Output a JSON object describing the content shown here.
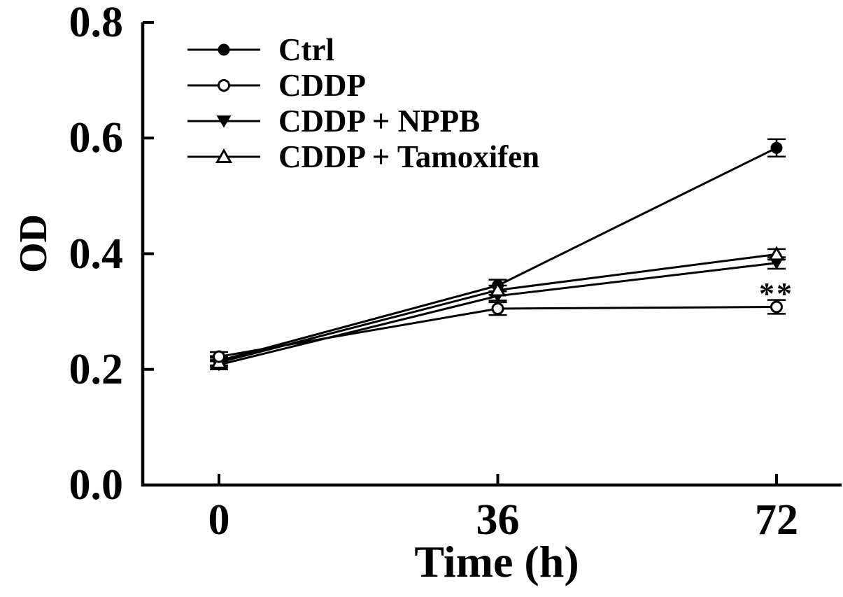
{
  "figure": {
    "background_color": "#ffffff",
    "ink_color": "#000000"
  },
  "chart_data": {
    "type": "line",
    "title": "",
    "xlabel": "Time (h)",
    "ylabel": "OD",
    "x": [
      0,
      36,
      72
    ],
    "x_tick_labels": [
      "0",
      "36",
      "72"
    ],
    "y_ticks": [
      0,
      0.2,
      0.4,
      0.6,
      0.8
    ],
    "y_tick_labels": [
      "0.0",
      "0.2",
      "0.4",
      "0.6",
      "0.8"
    ],
    "ylim": [
      0,
      0.8
    ],
    "grid": false,
    "legend_position": "upper left inside plot",
    "series": [
      {
        "name": "Ctrl",
        "marker": "circle-filled",
        "values": [
          0.215,
          0.345,
          0.583
        ],
        "errors": [
          0.008,
          0.01,
          0.015
        ]
      },
      {
        "name": "CDDP",
        "marker": "circle-open",
        "values": [
          0.222,
          0.305,
          0.308
        ],
        "errors": [
          0.008,
          0.011,
          0.012
        ]
      },
      {
        "name": "CDDP + NPPB",
        "marker": "triangle-down-filled",
        "values": [
          0.208,
          0.327,
          0.384
        ],
        "errors": [
          0.008,
          0.008,
          0.01
        ]
      },
      {
        "name": "CDDP + Tamoxifen",
        "marker": "triangle-up-open",
        "values": [
          0.212,
          0.337,
          0.399
        ],
        "errors": [
          0.008,
          0.008,
          0.009
        ]
      }
    ],
    "annotations": [
      {
        "text": "**",
        "x": 72,
        "y": 0.34
      }
    ]
  }
}
